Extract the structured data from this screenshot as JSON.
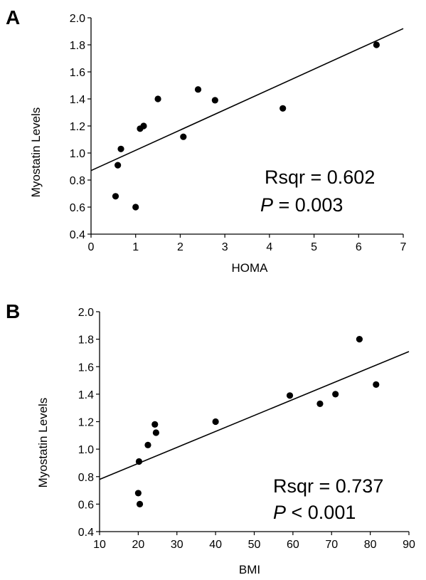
{
  "chart_data": [
    {
      "panel": "A",
      "type": "scatter",
      "xlabel": "HOMA",
      "ylabel": "Myostatin Levels",
      "xlim": [
        0,
        7
      ],
      "ylim": [
        0.4,
        2.0
      ],
      "xticks": [
        "0",
        "1",
        "2",
        "3",
        "4",
        "5",
        "6",
        "7"
      ],
      "yticks": [
        "0.4",
        "0.6",
        "0.8",
        "1.0",
        "1.2",
        "1.4",
        "1.6",
        "1.8",
        "2.0"
      ],
      "points": [
        {
          "x": 0.55,
          "y": 0.68
        },
        {
          "x": 0.6,
          "y": 0.91
        },
        {
          "x": 0.67,
          "y": 1.03
        },
        {
          "x": 1.0,
          "y": 0.6
        },
        {
          "x": 1.1,
          "y": 1.18
        },
        {
          "x": 1.18,
          "y": 1.2
        },
        {
          "x": 1.5,
          "y": 1.4
        },
        {
          "x": 2.07,
          "y": 1.12
        },
        {
          "x": 2.4,
          "y": 1.47
        },
        {
          "x": 2.78,
          "y": 1.39
        },
        {
          "x": 4.3,
          "y": 1.33
        },
        {
          "x": 6.4,
          "y": 1.8
        }
      ],
      "fit_line": {
        "x": [
          0,
          7
        ],
        "y": [
          0.87,
          1.92
        ]
      },
      "annotation": {
        "rsqr": "Rsqr = 0.602",
        "p_label": "P",
        "p_value": " = 0.003"
      },
      "grid": false,
      "legend": "none"
    },
    {
      "panel": "B",
      "type": "scatter",
      "xlabel": "BMI",
      "ylabel": "Myostatin Levels",
      "xlim": [
        10,
        90
      ],
      "ylim": [
        0.4,
        2.0
      ],
      "xticks": [
        "10",
        "20",
        "30",
        "40",
        "50",
        "60",
        "70",
        "80",
        "90"
      ],
      "yticks": [
        "0.4",
        "0.6",
        "0.8",
        "1.0",
        "1.2",
        "1.4",
        "1.6",
        "1.8",
        "2.0"
      ],
      "points": [
        {
          "x": 20.0,
          "y": 0.68
        },
        {
          "x": 20.2,
          "y": 0.91
        },
        {
          "x": 20.4,
          "y": 0.6
        },
        {
          "x": 22.5,
          "y": 1.03
        },
        {
          "x": 24.3,
          "y": 1.18
        },
        {
          "x": 24.6,
          "y": 1.12
        },
        {
          "x": 40.0,
          "y": 1.2
        },
        {
          "x": 59.2,
          "y": 1.39
        },
        {
          "x": 67.0,
          "y": 1.33
        },
        {
          "x": 71.0,
          "y": 1.4
        },
        {
          "x": 77.2,
          "y": 1.8
        },
        {
          "x": 81.5,
          "y": 1.47
        }
      ],
      "fit_line": {
        "x": [
          10,
          90
        ],
        "y": [
          0.78,
          1.71
        ]
      },
      "annotation": {
        "rsqr": "Rsqr = 0.737",
        "p_label": "P",
        "p_value": " < 0.001"
      },
      "grid": false,
      "legend": "none"
    }
  ]
}
